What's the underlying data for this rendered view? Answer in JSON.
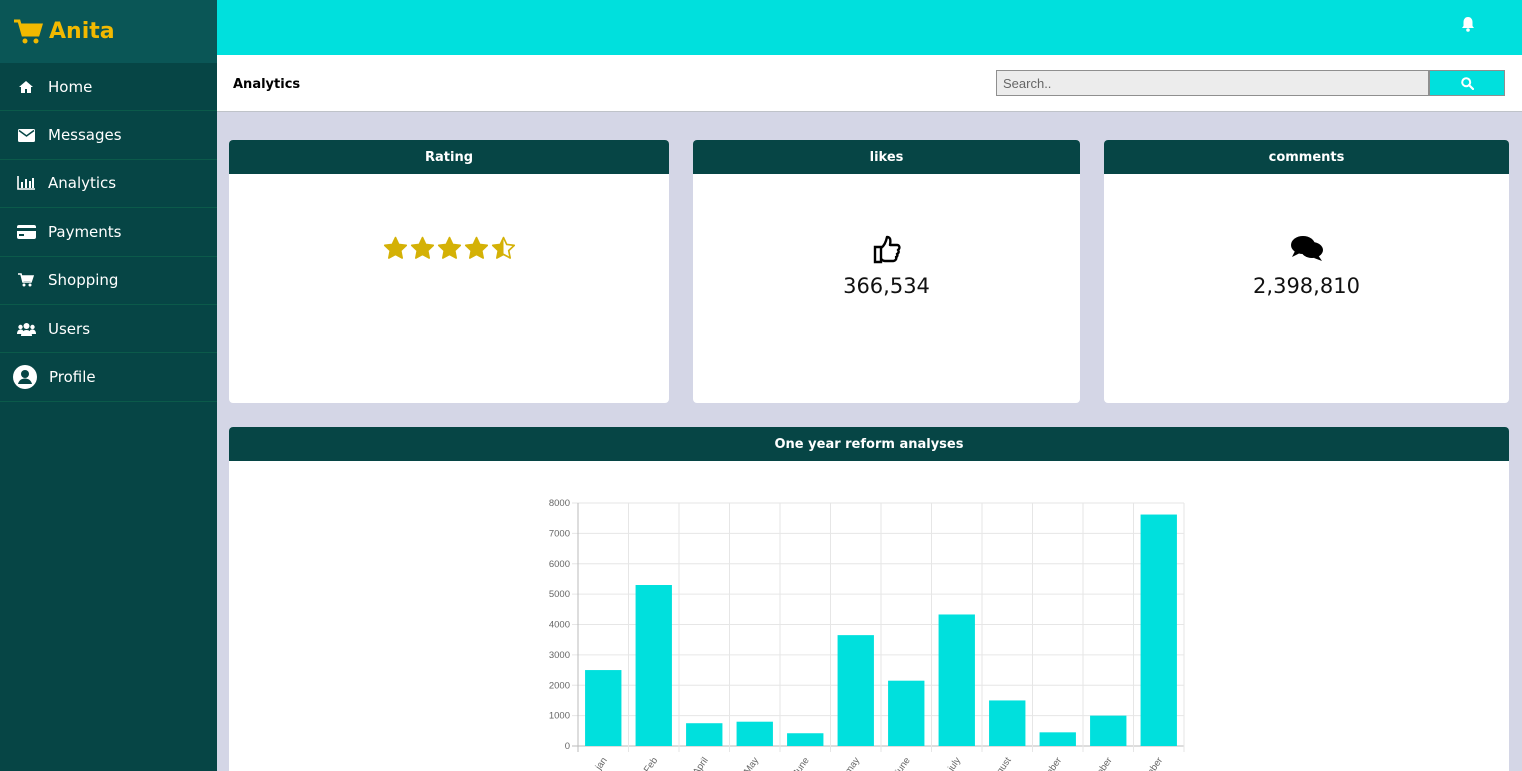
{
  "brand": {
    "name": "Anita",
    "color": "#f2b900",
    "icon": "cart-icon"
  },
  "sidebar": {
    "items": [
      {
        "label": "Home",
        "icon": "home-icon"
      },
      {
        "label": "Messages",
        "icon": "envelope-icon"
      },
      {
        "label": "Analytics",
        "icon": "bar-chart-icon"
      },
      {
        "label": "Payments",
        "icon": "credit-card-icon"
      },
      {
        "label": "Shopping",
        "icon": "cart-icon"
      },
      {
        "label": "Users",
        "icon": "users-icon"
      },
      {
        "label": "Profile",
        "icon": "user-circle-icon"
      }
    ]
  },
  "topbar": {
    "icon": "bell-icon",
    "color": "#00e0dd"
  },
  "header": {
    "title": "Analytics",
    "search_placeholder": "Search..",
    "search_icon": "search-icon"
  },
  "cards": {
    "rating": {
      "title": "Rating",
      "stars": 4.5,
      "max_stars": 5
    },
    "likes": {
      "title": "likes",
      "value": "366,534",
      "icon": "thumbs-up-icon"
    },
    "comments": {
      "title": "comments",
      "value": "2,398,810",
      "icon": "comments-icon"
    }
  },
  "chart_card": {
    "title": "One year reform analyses"
  },
  "chart_data": {
    "type": "bar",
    "categories": [
      "jan",
      "Feb",
      "April",
      "May",
      "June",
      "may",
      "june",
      "july",
      "ugust",
      "ember",
      "ober",
      "mber"
    ],
    "values": [
      2500,
      5300,
      750,
      800,
      420,
      3650,
      2150,
      4330,
      1500,
      450,
      1000,
      7620
    ],
    "ylim": [
      0,
      8000
    ],
    "yticks": [
      0,
      1000,
      2000,
      3000,
      4000,
      5000,
      6000,
      7000,
      8000
    ],
    "grid": true,
    "bar_color": "#00e0dd"
  },
  "colors": {
    "sidebar": "#064545",
    "accent": "#00e0dd",
    "star": "#d4b106",
    "card_header": "#064545"
  }
}
